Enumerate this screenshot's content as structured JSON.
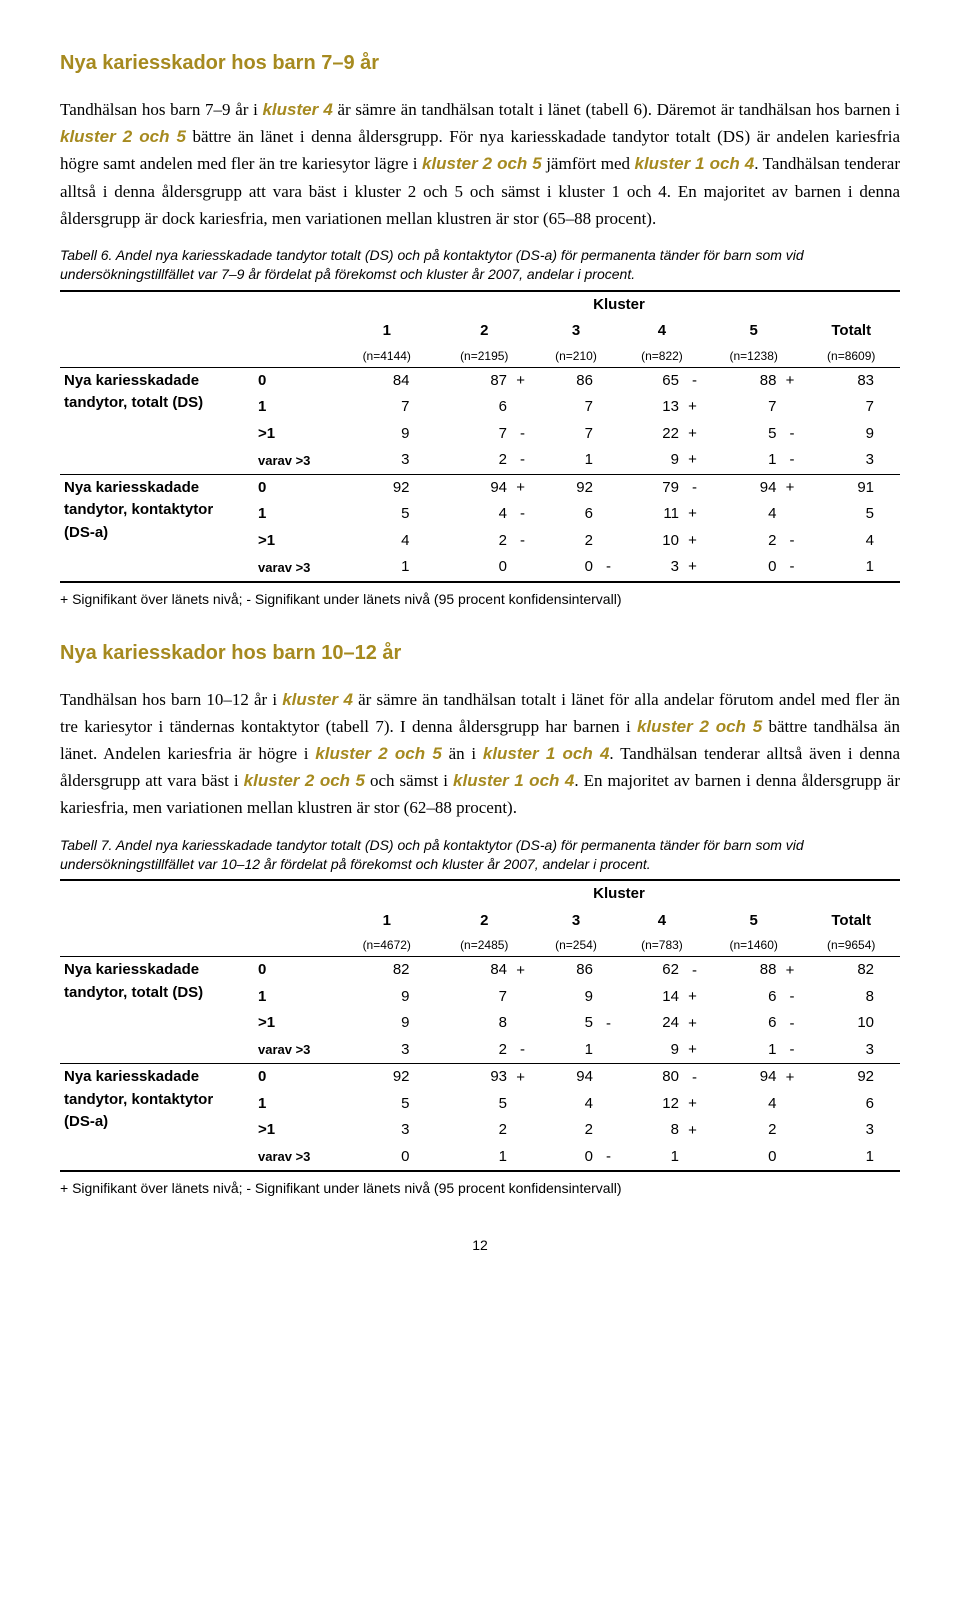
{
  "accent_color": "#a68a1f",
  "section1": {
    "heading": "Nya kariesskador hos barn 7–9 år",
    "para": [
      {
        "t": "Tandhälsan hos barn 7–9 år i "
      },
      {
        "t": "kluster 4",
        "accent": true
      },
      {
        "t": " är sämre än tandhälsan totalt i länet (tabell 6). Däremot är tandhälsan hos barnen i "
      },
      {
        "t": "kluster 2 och 5",
        "accent": true
      },
      {
        "t": " bättre än länet i denna åldersgrupp. För nya kariesskadade tandytor totalt (DS) är andelen kariesfria högre samt andelen med fler än tre kariesytor lägre i "
      },
      {
        "t": "kluster 2 och 5",
        "accent": true
      },
      {
        "t": " jämfört med "
      },
      {
        "t": "kluster 1 och 4",
        "accent": true
      },
      {
        "t": ". Tandhälsan tenderar alltså i denna åldersgrupp att vara bäst i kluster 2 och 5 och sämst i kluster 1 och 4. En majoritet av barnen i denna åldersgrupp är dock kariesfria, men variationen mellan klustren är stor (65–88 procent)."
      }
    ]
  },
  "table6": {
    "caption": "Tabell 6. Andel nya kariesskadade tandytor totalt (DS) och på kontaktytor (DS-a) för permanenta tänder för barn som vid undersökningstillfället var 7–9 år fördelat på förekomst och kluster år 2007, andelar i procent.",
    "kluster_label": "Kluster",
    "cols": [
      "1",
      "2",
      "3",
      "4",
      "5",
      "Totalt"
    ],
    "ns": [
      "(n=4144)",
      "(n=2195)",
      "(n=210)",
      "(n=822)",
      "(n=1238)",
      "(n=8609)"
    ],
    "group1_label": "Nya kariesskadade tandytor, totalt (DS)",
    "group2_label": "Nya kariesskadade tandytor, kontaktytor (DS-a)",
    "sublabels": [
      "0",
      "1",
      ">1",
      "varav >3"
    ],
    "g1": [
      [
        {
          "v": "84"
        },
        {
          "v": "87",
          "s": "+"
        },
        {
          "v": "86"
        },
        {
          "v": "65",
          "s": "-"
        },
        {
          "v": "88",
          "s": "+"
        },
        {
          "v": "83"
        }
      ],
      [
        {
          "v": "7"
        },
        {
          "v": "6"
        },
        {
          "v": "7"
        },
        {
          "v": "13",
          "s": "+"
        },
        {
          "v": "7"
        },
        {
          "v": "7"
        }
      ],
      [
        {
          "v": "9"
        },
        {
          "v": "7",
          "s": "-"
        },
        {
          "v": "7"
        },
        {
          "v": "22",
          "s": "+"
        },
        {
          "v": "5",
          "s": "-"
        },
        {
          "v": "9"
        }
      ],
      [
        {
          "v": "3"
        },
        {
          "v": "2",
          "s": "-"
        },
        {
          "v": "1"
        },
        {
          "v": "9",
          "s": "+"
        },
        {
          "v": "1",
          "s": "-"
        },
        {
          "v": "3"
        }
      ]
    ],
    "g2": [
      [
        {
          "v": "92"
        },
        {
          "v": "94",
          "s": "+"
        },
        {
          "v": "92"
        },
        {
          "v": "79",
          "s": "-"
        },
        {
          "v": "94",
          "s": "+"
        },
        {
          "v": "91"
        }
      ],
      [
        {
          "v": "5"
        },
        {
          "v": "4",
          "s": "-"
        },
        {
          "v": "6"
        },
        {
          "v": "11",
          "s": "+"
        },
        {
          "v": "4"
        },
        {
          "v": "5"
        }
      ],
      [
        {
          "v": "4"
        },
        {
          "v": "2",
          "s": "-"
        },
        {
          "v": "2"
        },
        {
          "v": "10",
          "s": "+"
        },
        {
          "v": "2",
          "s": "-"
        },
        {
          "v": "4"
        }
      ],
      [
        {
          "v": "1"
        },
        {
          "v": "0"
        },
        {
          "v": "0",
          "s": "-"
        },
        {
          "v": "3",
          "s": "+"
        },
        {
          "v": "0",
          "s": "-"
        },
        {
          "v": "1"
        }
      ]
    ]
  },
  "footnote": "+ Signifikant över länets nivå; - Signifikant under länets nivå (95 procent konfidensintervall)",
  "section2": {
    "heading": "Nya kariesskador hos barn 10–12 år",
    "para": [
      {
        "t": "Tandhälsan hos barn 10–12 år i "
      },
      {
        "t": "kluster 4",
        "accent": true
      },
      {
        "t": " är sämre än tandhälsan totalt i länet för alla andelar förutom andel med fler än tre kariesytor i tändernas kontaktytor (tabell 7). I denna åldersgrupp har barnen i "
      },
      {
        "t": "kluster 2 och 5",
        "accent": true
      },
      {
        "t": " bättre tandhälsa än länet. Andelen kariesfria är högre i "
      },
      {
        "t": "kluster 2 och 5",
        "accent": true
      },
      {
        "t": " än i "
      },
      {
        "t": "kluster 1 och 4",
        "accent": true
      },
      {
        "t": ". Tandhälsan tenderar alltså även i denna åldersgrupp att vara bäst i "
      },
      {
        "t": "kluster 2 och 5",
        "accent": true
      },
      {
        "t": " och sämst i "
      },
      {
        "t": "kluster 1 och 4",
        "accent": true
      },
      {
        "t": ". En majoritet av barnen i denna åldersgrupp är kariesfria, men variationen mellan klustren är stor (62–88 procent)."
      }
    ]
  },
  "table7": {
    "caption": "Tabell 7. Andel nya kariesskadade tandytor totalt (DS) och på kontaktytor (DS-a) för permanenta tänder för barn som vid undersökningstillfället var 10–12 år fördelat på förekomst och kluster år 2007, andelar i procent.",
    "kluster_label": "Kluster",
    "cols": [
      "1",
      "2",
      "3",
      "4",
      "5",
      "Totalt"
    ],
    "ns": [
      "(n=4672)",
      "(n=2485)",
      "(n=254)",
      "(n=783)",
      "(n=1460)",
      "(n=9654)"
    ],
    "group1_label": "Nya kariesskadade tandytor, totalt (DS)",
    "group2_label": "Nya kariesskadade tandytor, kontaktytor (DS-a)",
    "sublabels": [
      "0",
      "1",
      ">1",
      "varav >3"
    ],
    "g1": [
      [
        {
          "v": "82"
        },
        {
          "v": "84",
          "s": "+"
        },
        {
          "v": "86"
        },
        {
          "v": "62",
          "s": "-"
        },
        {
          "v": "88",
          "s": "+"
        },
        {
          "v": "82"
        }
      ],
      [
        {
          "v": "9"
        },
        {
          "v": "7"
        },
        {
          "v": "9"
        },
        {
          "v": "14",
          "s": "+"
        },
        {
          "v": "6",
          "s": "-"
        },
        {
          "v": "8"
        }
      ],
      [
        {
          "v": "9"
        },
        {
          "v": "8"
        },
        {
          "v": "5",
          "s": "-"
        },
        {
          "v": "24",
          "s": "+"
        },
        {
          "v": "6",
          "s": "-"
        },
        {
          "v": "10"
        }
      ],
      [
        {
          "v": "3"
        },
        {
          "v": "2",
          "s": "-"
        },
        {
          "v": "1"
        },
        {
          "v": "9",
          "s": "+"
        },
        {
          "v": "1",
          "s": "-"
        },
        {
          "v": "3"
        }
      ]
    ],
    "g2": [
      [
        {
          "v": "92"
        },
        {
          "v": "93",
          "s": "+"
        },
        {
          "v": "94"
        },
        {
          "v": "80",
          "s": "-"
        },
        {
          "v": "94",
          "s": "+"
        },
        {
          "v": "92"
        }
      ],
      [
        {
          "v": "5"
        },
        {
          "v": "5"
        },
        {
          "v": "4"
        },
        {
          "v": "12",
          "s": "+"
        },
        {
          "v": "4"
        },
        {
          "v": "6"
        }
      ],
      [
        {
          "v": "3"
        },
        {
          "v": "2"
        },
        {
          "v": "2"
        },
        {
          "v": "8",
          "s": "+"
        },
        {
          "v": "2"
        },
        {
          "v": "3"
        }
      ],
      [
        {
          "v": "0"
        },
        {
          "v": "1"
        },
        {
          "v": "0",
          "s": "-"
        },
        {
          "v": "1"
        },
        {
          "v": "0"
        },
        {
          "v": "1"
        }
      ]
    ]
  },
  "pagenum": "12"
}
